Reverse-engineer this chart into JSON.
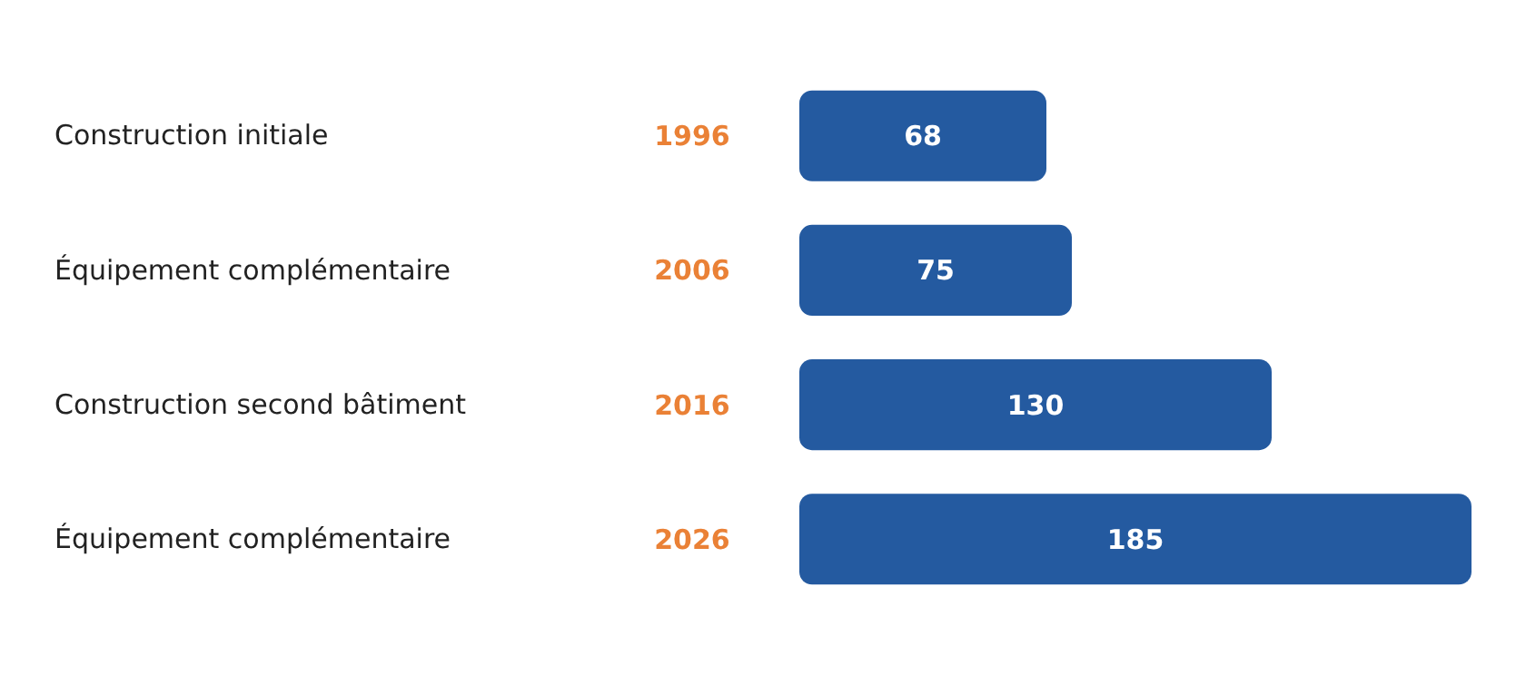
{
  "chart_data": {
    "type": "bar",
    "orientation": "horizontal",
    "categories": [
      "Construction initiale",
      "Équipement complémentaire",
      "Construction second bâtiment",
      "Équipement complémentaire"
    ],
    "values": [
      68,
      75,
      130,
      185
    ],
    "color": "#245aa0",
    "xlim": [
      0,
      185
    ],
    "tick_labels": "y",
    "data_labels": true,
    "annotations": [
      "1996",
      "2006",
      "2016",
      "2026"
    ]
  }
}
